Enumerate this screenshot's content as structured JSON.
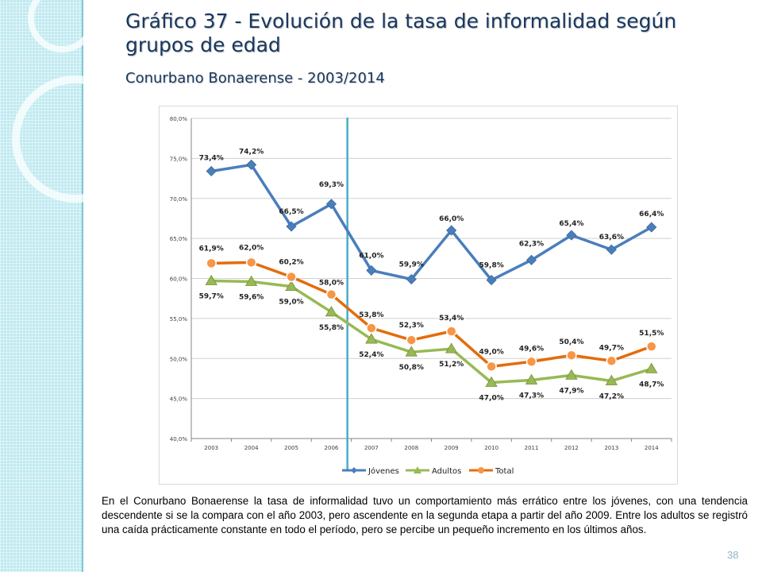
{
  "slide": {
    "title": "Gráfico 37 - Evolución de la tasa de informalidad según grupos de edad",
    "subtitle": "Conurbano Bonaerense - 2003/2014",
    "body": "En el Conurbano Bonaerense la tasa de informalidad tuvo un comportamiento más errático entre los jóvenes, con una tendencia descendente si se la compara con el año 2003, pero ascendente en la segunda etapa a partir del año 2009. Entre los adultos se registró una caída prácticamente constante en todo el período, pero se percibe un pequeño incremento en los últimos años.",
    "page_number": "38"
  },
  "chart_data": {
    "type": "line",
    "title": "",
    "xlabel": "",
    "ylabel": "",
    "categories": [
      "2003",
      "2004",
      "2005",
      "2006",
      "2007",
      "2008",
      "2009",
      "2010",
      "2011",
      "2012",
      "2013",
      "2014"
    ],
    "ylim": [
      40,
      80
    ],
    "yticks": [
      "40,0%",
      "45,0%",
      "50,0%",
      "55,0%",
      "60,0%",
      "65,0%",
      "70,0%",
      "75,0%",
      "80,0%"
    ],
    "grid": true,
    "legend_position": "bottom",
    "reference_line_between": [
      "2006",
      "2007"
    ],
    "series": [
      {
        "name": "Jóvenes",
        "color": "#4a7ebb",
        "marker": "diamond",
        "values": [
          73.4,
          74.2,
          66.5,
          69.3,
          61.0,
          59.9,
          66.0,
          59.8,
          62.3,
          65.4,
          63.6,
          66.4
        ],
        "labels": [
          "73,4%",
          "74,2%",
          "66,5%",
          "69,3%",
          "61,0%",
          "59,9%",
          "66,0%",
          "59,8%",
          "62,3%",
          "65,4%",
          "63,6%",
          "66,4%"
        ]
      },
      {
        "name": "Adultos",
        "color": "#98b954",
        "marker": "triangle",
        "values": [
          59.7,
          59.6,
          59.0,
          55.8,
          52.4,
          50.8,
          51.2,
          47.0,
          47.3,
          47.9,
          47.2,
          48.7
        ],
        "labels": [
          "59,7%",
          "59,6%",
          "59,0%",
          "55,8%",
          "52,4%",
          "50,8%",
          "51,2%",
          "47,0%",
          "47,3%",
          "47,9%",
          "47,2%",
          "48,7%"
        ]
      },
      {
        "name": "Total",
        "color": "#e46c0a",
        "marker": "circle",
        "values": [
          61.9,
          62.0,
          60.2,
          58.0,
          53.8,
          52.3,
          53.4,
          49.0,
          49.6,
          50.4,
          49.7,
          51.5
        ],
        "labels": [
          "61,9%",
          "62,0%",
          "60,2%",
          "58,0%",
          "53,8%",
          "52,3%",
          "53,4%",
          "49,0%",
          "49,6%",
          "50,4%",
          "49,7%",
          "51,5%"
        ]
      }
    ]
  }
}
